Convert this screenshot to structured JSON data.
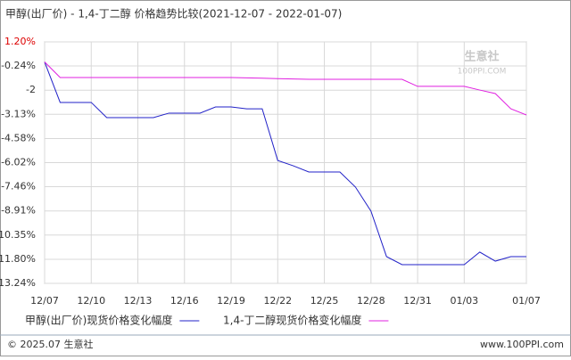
{
  "chart_data": {
    "type": "line",
    "title": "甲醇(出厂价) - 1,4-丁二醇 价格趋势比较(2021-12-07 - 2022-01-07)",
    "watermark": {
      "brand": "生意社",
      "site": "100PPI.COM"
    },
    "categories": [
      "12/07",
      null,
      null,
      "12/10",
      null,
      null,
      "12/13",
      null,
      null,
      "12/16",
      null,
      null,
      "12/19",
      null,
      null,
      "12/22",
      null,
      null,
      "12/25",
      null,
      null,
      "12/28",
      null,
      null,
      "12/31",
      null,
      null,
      "01/03",
      null,
      null,
      null,
      "01/07"
    ],
    "series": [
      {
        "name": "甲醇(出厂价)现货价格变化幅度",
        "color": "#2222c8",
        "values": [
          0,
          -2.42,
          -2.42,
          -2.42,
          -3.33,
          -3.33,
          -3.33,
          -3.33,
          -3.06,
          -3.06,
          -3.06,
          -2.69,
          -2.69,
          -2.8,
          -2.8,
          -5.89,
          -6.21,
          -6.58,
          -6.58,
          -6.58,
          -7.48,
          -8.92,
          -11.64,
          -12.12,
          -12.12,
          -12.12,
          -12.12,
          -12.12,
          -11.37,
          -11.91,
          -11.64,
          -11.64
        ]
      },
      {
        "name": "1,4-丁二醇现货价格变化幅度",
        "color": "#e020e0",
        "values": [
          0,
          -0.93,
          -0.93,
          -0.93,
          -0.93,
          -0.93,
          -0.93,
          -0.93,
          -0.93,
          -0.93,
          -0.93,
          -0.93,
          -0.93,
          -0.95,
          -0.97,
          -1.0,
          -1.02,
          -1.04,
          -1.04,
          -1.04,
          -1.04,
          -1.04,
          -1.04,
          -1.04,
          -1.46,
          -1.46,
          -1.46,
          -1.46,
          -1.68,
          -1.89,
          -2.8,
          -3.17
        ]
      }
    ],
    "ylim": [
      -13.24,
      1.2
    ],
    "yticks": [
      {
        "value": 1.2,
        "label": "1.20%"
      },
      {
        "value": -0.24,
        "label": "-0.24%"
      },
      {
        "value": -1.69,
        "label": "-2"
      },
      {
        "value": -3.13,
        "label": "-3.13%"
      },
      {
        "value": -4.58,
        "label": "-4.58%"
      },
      {
        "value": -6.02,
        "label": "-6.02%"
      },
      {
        "value": -7.46,
        "label": "-7.46%"
      },
      {
        "value": -8.91,
        "label": "-8.91%"
      },
      {
        "value": -10.35,
        "label": "-10.35%"
      },
      {
        "value": -11.8,
        "label": "-11.80%"
      },
      {
        "value": -13.24,
        "label": "-13.24%"
      }
    ],
    "grid": true,
    "footer": {
      "left": "© 2025.07 生意社",
      "right": "www.100PPI.com"
    }
  }
}
